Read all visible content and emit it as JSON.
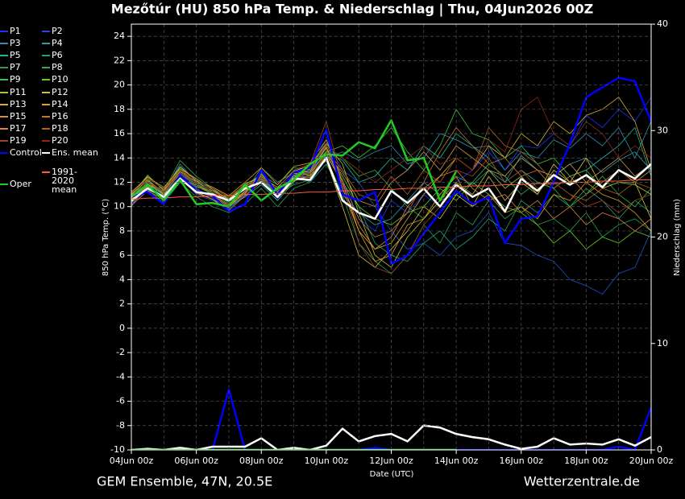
{
  "chart_data": {
    "type": "line",
    "title": "Mezőtúr  (HU)  850 hPa Temp. & Niederschlag | Thu, 04Jun2026 00Z",
    "footer_left": "GEM Ensemble, 47N, 20.5E",
    "footer_right": "Wetterzentrale.de",
    "xlabel": "Date (UTC)",
    "ylabel": "850 hPa Temp. (°C)",
    "y2label": "Niederschlag (mm)",
    "x": [
      "04Jun 00z",
      "04Jun 12z",
      "05Jun 00z",
      "05Jun 12z",
      "06Jun 00z",
      "06Jun 12z",
      "07Jun 00z",
      "07Jun 12z",
      "08Jun 00z",
      "08Jun 12z",
      "09Jun 00z",
      "09Jun 12z",
      "10Jun 00z",
      "10Jun 12z",
      "11Jun 00z",
      "11Jun 12z",
      "12Jun 00z",
      "12Jun 12z",
      "13Jun 00z",
      "13Jun 12z",
      "14Jun 00z",
      "14Jun 12z",
      "15Jun 00z",
      "15Jun 12z",
      "16Jun 00z",
      "16Jun 12z",
      "17Jun 00z",
      "17Jun 12z",
      "18Jun 00z",
      "18Jun 12z",
      "19Jun 00z",
      "19Jun 12z",
      "20Jun 00z"
    ],
    "xticks": [
      "04Jun 00z",
      "06Jun 00z",
      "08Jun 00z",
      "10Jun 00z",
      "12Jun 00z",
      "14Jun 00z",
      "16Jun 00z",
      "18Jun 00z",
      "20Jun 00z"
    ],
    "ylim": [
      -10,
      25
    ],
    "yticks": [
      -10,
      -8,
      -6,
      -4,
      -2,
      0,
      2,
      4,
      6,
      8,
      10,
      12,
      14,
      16,
      18,
      20,
      22,
      24
    ],
    "y2lim": [
      0,
      40
    ],
    "y2ticks": [
      0,
      10,
      20,
      30,
      40
    ],
    "grid": true,
    "series": [
      {
        "name": "P1",
        "color": "#2030ff",
        "linewidth": 0.8,
        "values": [
          10.2,
          11.5,
          10.8,
          12.9,
          11.5,
          10.7,
          10,
          10.8,
          12.5,
          11,
          12.2,
          12.8,
          14.8,
          12,
          9,
          8,
          10.5,
          9.5,
          11,
          10,
          12,
          13,
          14.5,
          13,
          15,
          14.8,
          16,
          15,
          17.5,
          16.5,
          18,
          17,
          19
        ]
      },
      {
        "name": "P2",
        "color": "#1f4fd8",
        "linewidth": 0.8,
        "values": [
          10.5,
          11.8,
          11,
          12.4,
          11,
          10.5,
          9.8,
          11,
          12.8,
          10.5,
          12.5,
          13,
          15.5,
          13,
          12,
          10,
          8,
          6.5,
          7,
          6,
          7.5,
          8,
          9.5,
          7,
          6.8,
          6,
          5.5,
          4,
          3.5,
          2.8,
          4.5,
          5,
          8
        ]
      },
      {
        "name": "P3",
        "color": "#2f8fb0",
        "linewidth": 0.8,
        "values": [
          10,
          12,
          11.2,
          13.5,
          12,
          11.5,
          10.5,
          11.8,
          12,
          11.5,
          13,
          12.5,
          14,
          14.5,
          13.8,
          14.5,
          15,
          13.5,
          14,
          16,
          15.5,
          14.8,
          15,
          13,
          14.5,
          14,
          15.5,
          14.8,
          16,
          15,
          16.5,
          14,
          17
        ]
      },
      {
        "name": "P4",
        "color": "#2aa0a0",
        "linewidth": 0.8,
        "values": [
          11,
          12.2,
          10.5,
          12,
          11.8,
          11,
          10.2,
          11.2,
          13.2,
          12,
          12.8,
          12,
          13.5,
          11,
          9.5,
          8.5,
          9,
          10.5,
          12,
          11,
          12.5,
          11.8,
          13,
          12,
          14.2,
          13,
          12.5,
          13.5,
          14,
          12.8,
          13.8,
          14.5,
          13
        ]
      },
      {
        "name": "P5",
        "color": "#1fb5a0",
        "linewidth": 0.8,
        "values": [
          10.3,
          11.6,
          11.5,
          13.2,
          12.2,
          10.8,
          10,
          10.8,
          11.8,
          10.5,
          12,
          13.5,
          14.5,
          13.8,
          12,
          12.5,
          14,
          13,
          15,
          14,
          16,
          15,
          14,
          12,
          13,
          12,
          11.5,
          12.5,
          13,
          14,
          15,
          16.5,
          12.5
        ]
      },
      {
        "name": "P6",
        "color": "#1ea56e",
        "linewidth": 0.8,
        "values": [
          10.7,
          12.3,
          11,
          12.8,
          11.8,
          11.2,
          10.3,
          11.5,
          12.3,
          11,
          11.8,
          12.2,
          14.2,
          12,
          10,
          7,
          6,
          5.5,
          7,
          8,
          6.5,
          7.5,
          9,
          8,
          10.5,
          9.5,
          11,
          10,
          11.5,
          10.5,
          9,
          10.5,
          9.5
        ]
      },
      {
        "name": "P7",
        "color": "#2a9f50",
        "linewidth": 0.8,
        "values": [
          10.4,
          11.4,
          10.3,
          12,
          10.8,
          10,
          9.5,
          10.2,
          11.5,
          10,
          11.5,
          12,
          14,
          11,
          7,
          5.5,
          4.5,
          6,
          8.5,
          7,
          9.5,
          8.5,
          10.5,
          9,
          10,
          8.5,
          9,
          8,
          9.5,
          7.5,
          8.5,
          9,
          8
        ]
      },
      {
        "name": "P8",
        "color": "#30b040",
        "linewidth": 0.8,
        "values": [
          10.9,
          12.6,
          11.3,
          13.8,
          12.5,
          11.5,
          10.8,
          11.8,
          12.6,
          11.8,
          13.2,
          13,
          15,
          14,
          12.5,
          13,
          11.5,
          10,
          9,
          10.5,
          11,
          12,
          13.5,
          12.5,
          11,
          12,
          11.5,
          10,
          11,
          12.5,
          11,
          10,
          11.5
        ]
      },
      {
        "name": "P9",
        "color": "#40c040",
        "linewidth": 0.8,
        "values": [
          10.6,
          11.9,
          10.9,
          12.5,
          11.6,
          11.3,
          10.7,
          11.4,
          12.2,
          10.9,
          12.6,
          12.8,
          14.5,
          15,
          14,
          15,
          16.5,
          14.5,
          13,
          15,
          18,
          16,
          15.5,
          14,
          15,
          13.5,
          14,
          12.5,
          13,
          11.5,
          12,
          12,
          13
        ]
      },
      {
        "name": "P10",
        "color": "#60d020",
        "linewidth": 0.8,
        "values": [
          10.5,
          12.1,
          11.2,
          12.9,
          11.9,
          11.1,
          10.4,
          11.6,
          12.7,
          11.2,
          12.4,
          13.1,
          14.8,
          12.5,
          10,
          9,
          8.5,
          9.5,
          10,
          11.5,
          10.5,
          12,
          11,
          10,
          9.5,
          8.5,
          7,
          8,
          6.5,
          7.5,
          7,
          8,
          7.5
        ]
      },
      {
        "name": "P11",
        "color": "#b8c030",
        "linewidth": 0.8,
        "values": [
          11.2,
          12.4,
          11.6,
          13.1,
          12.3,
          11.4,
          10.6,
          11.9,
          12.4,
          11.6,
          12.9,
          13.4,
          15.2,
          13.5,
          9.5,
          6,
          5,
          7.5,
          9,
          10.5,
          12,
          11,
          13,
          11.5,
          12.5,
          11,
          13,
          12,
          12.5,
          11.5,
          12,
          11.8,
          11
        ]
      },
      {
        "name": "P12",
        "color": "#d0c040",
        "linewidth": 0.8,
        "values": [
          10.8,
          12,
          11,
          12.2,
          11.2,
          10.6,
          9.9,
          11.3,
          12.1,
          10.7,
          12.1,
          12.6,
          13.8,
          10,
          6,
          5,
          6.5,
          8,
          10,
          9,
          11,
          10,
          12.5,
          10.5,
          12,
          11,
          13.5,
          12,
          14,
          11.5,
          13,
          12,
          9
        ]
      },
      {
        "name": "P13",
        "color": "#d8b030",
        "linewidth": 0.8,
        "values": [
          10.4,
          11.7,
          10.7,
          12.6,
          11.4,
          10.9,
          10.1,
          11.1,
          12.9,
          11.3,
          12.7,
          12.9,
          14.9,
          11.5,
          8,
          6.5,
          7,
          9,
          11,
          12.5,
          14,
          13,
          15,
          14,
          16,
          15,
          17,
          16,
          17.5,
          18,
          19,
          17,
          13
        ]
      },
      {
        "name": "P14",
        "color": "#e0a020",
        "linewidth": 0.8,
        "values": [
          11,
          12.5,
          11.4,
          13.3,
          12.1,
          11.6,
          10.9,
          12,
          13.2,
          11.8,
          13.3,
          13.6,
          15.5,
          12,
          8,
          5.5,
          6,
          8.5,
          9,
          11,
          12.5,
          10,
          11,
          9.5,
          10,
          9,
          11,
          10.5,
          12,
          11,
          10.5,
          9.5,
          8
        ]
      },
      {
        "name": "P15",
        "color": "#d09050",
        "linewidth": 0.8,
        "values": [
          10.1,
          11.3,
          10.6,
          12.3,
          11.1,
          10.6,
          9.7,
          10.9,
          12,
          10.8,
          12.3,
          12.4,
          14.3,
          12.8,
          10.5,
          10,
          12,
          13,
          14.5,
          13,
          15,
          14,
          13,
          12.5,
          14,
          13,
          12.5,
          13.5,
          12,
          13,
          14,
          12.5,
          13.5
        ]
      },
      {
        "name": "P16",
        "color": "#c07830",
        "linewidth": 0.8,
        "values": [
          10.9,
          12.2,
          11.1,
          12.7,
          11.7,
          11,
          10.2,
          11.3,
          12.5,
          11.1,
          12.9,
          13.2,
          15.1,
          12.2,
          9,
          7.5,
          8,
          9.5,
          12,
          14.5,
          16.5,
          15,
          13.5,
          14,
          12.5,
          13,
          11.5,
          12.5,
          11,
          12,
          13,
          12,
          13
        ]
      },
      {
        "name": "P17",
        "color": "#e08040",
        "linewidth": 0.8,
        "values": [
          10.6,
          11.8,
          11.3,
          13,
          12,
          11.3,
          10.5,
          11.7,
          12.3,
          11.4,
          12.5,
          12.7,
          14.4,
          11.8,
          8.5,
          6.5,
          7.5,
          10,
          11.5,
          12.5,
          13,
          11.5,
          10.5,
          11,
          9.5,
          10.5,
          9,
          10,
          8.5,
          9.5,
          9,
          8,
          9
        ]
      },
      {
        "name": "P18",
        "color": "#b06020",
        "linewidth": 0.8,
        "values": [
          10.3,
          11.6,
          10.8,
          12.4,
          11.3,
          10.8,
          10,
          11,
          12.6,
          11,
          12.4,
          12.5,
          14.6,
          13,
          11,
          10.5,
          12.5,
          11,
          13,
          12,
          14,
          13,
          16.5,
          15,
          14.5,
          13.5,
          12,
          11,
          10.5,
          11.5,
          11,
          12,
          11.5
        ]
      },
      {
        "name": "P19",
        "color": "#a04020",
        "linewidth": 0.8,
        "values": [
          11.1,
          12.3,
          11.5,
          13,
          12.2,
          11.5,
          10.8,
          11.8,
          12.1,
          11.5,
          13,
          13.5,
          17,
          12,
          7,
          5,
          4.5,
          6,
          8.5,
          10,
          13,
          12.5,
          14,
          12,
          13,
          11.5,
          12,
          11,
          10,
          10.5,
          9.5,
          10.5,
          11
        ]
      },
      {
        "name": "P20",
        "color": "#902818",
        "linewidth": 0.8,
        "values": [
          10.7,
          12,
          11.2,
          12.8,
          11.9,
          11.2,
          10.4,
          11.5,
          12.4,
          11.3,
          12.8,
          13,
          15,
          14,
          13,
          12,
          13,
          14,
          15,
          13.5,
          14,
          13,
          15.5,
          14.5,
          18,
          19,
          16,
          15,
          17,
          16,
          14,
          15,
          14
        ]
      },
      {
        "name": "Control",
        "color": "#0000ff",
        "linewidth": 2.5,
        "values": [
          10.8,
          11.2,
          10.2,
          12.6,
          11.3,
          10.9,
          9.6,
          10.2,
          13,
          11,
          12.8,
          13.2,
          16.3,
          11,
          10.5,
          11.2,
          5.3,
          6,
          7.8,
          9.5,
          11.3,
          10.2,
          10.8,
          7,
          9,
          9.2,
          12,
          15.2,
          19,
          19.8,
          20.6,
          20.3,
          17
        ],
        "precip": [
          0,
          0,
          0,
          0,
          0,
          0,
          5.7,
          0,
          0,
          0,
          0,
          0,
          0,
          0,
          0,
          0.2,
          0,
          0,
          0,
          0,
          0,
          0,
          0,
          0,
          0,
          0,
          0,
          0,
          0,
          0,
          0.3,
          0,
          4
        ]
      },
      {
        "name": "Ens. mean",
        "color": "#ffffff",
        "linewidth": 2.5,
        "values": [
          10.5,
          11.5,
          10.8,
          12.3,
          11.2,
          11,
          10.5,
          11.5,
          12,
          10.8,
          12.3,
          12.2,
          14,
          10.5,
          9.5,
          9,
          11.3,
          10.3,
          11.5,
          10,
          11.8,
          10.8,
          11.5,
          9.6,
          12.3,
          11.3,
          12.6,
          11.8,
          12.6,
          11.6,
          13,
          12.3,
          13.5
        ],
        "precip": [
          0,
          0.1,
          0,
          0.2,
          0,
          0.3,
          0.3,
          0.3,
          1.1,
          0,
          0.2,
          0,
          0.4,
          2,
          0.8,
          1.3,
          1.5,
          0.8,
          2.3,
          2.1,
          1.5,
          1.2,
          1,
          0.5,
          0.1,
          0.3,
          1.1,
          0.5,
          0.6,
          0.5,
          1,
          0.4,
          1.2
        ]
      },
      {
        "name": "1991-2020 mean",
        "color": "#ff5a40",
        "linewidth": 1,
        "values": [
          10.6,
          10.7,
          10.7,
          10.8,
          10.8,
          10.9,
          10.9,
          11,
          11,
          11.1,
          11.1,
          11.2,
          11.2,
          11.3,
          11.3,
          11.4,
          11.4,
          11.5,
          11.5,
          11.6,
          11.6,
          11.7,
          11.7,
          11.8,
          11.8,
          11.9,
          11.9,
          12,
          12,
          12.1,
          12.1,
          12.2,
          12.2
        ]
      },
      {
        "name": "Oper",
        "color": "#22cc22",
        "linewidth": 2.5,
        "values": [
          10.8,
          11.8,
          10.5,
          12.2,
          10.2,
          10.3,
          10,
          11.8,
          10.5,
          11.5,
          12.2,
          13.5,
          14.3,
          14.2,
          15.3,
          14.8,
          17.1,
          13.8,
          14,
          10.5,
          12.9,
          null,
          null,
          null,
          null,
          null,
          null,
          null,
          null,
          null,
          null,
          null,
          null
        ],
        "precip": [
          0,
          0,
          0,
          0,
          0,
          0,
          0,
          0,
          0,
          0,
          0,
          0,
          0,
          0,
          0,
          0,
          0,
          0,
          0,
          0,
          0,
          null,
          null,
          null,
          null,
          null,
          null,
          null,
          null,
          null,
          null,
          null,
          null
        ]
      }
    ]
  }
}
